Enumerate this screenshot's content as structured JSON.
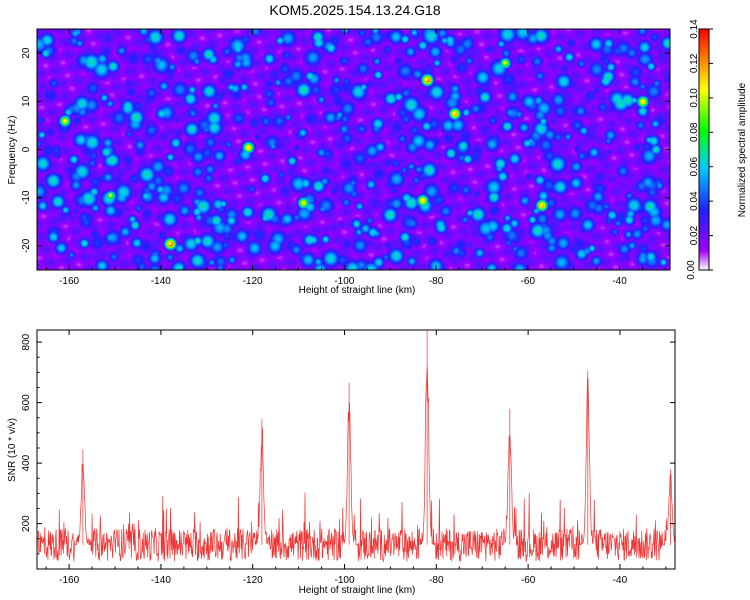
{
  "chart_data": [
    {
      "type": "heatmap",
      "title": "KOM5.2025.154.13.24.G18",
      "xlabel": "Height of straight line (km)",
      "ylabel": "Frequency (Hz)",
      "xlim": [
        -167,
        -29
      ],
      "ylim": [
        -25,
        25
      ],
      "xticks": [
        -160,
        -140,
        -120,
        -100,
        -80,
        -60,
        -40
      ],
      "yticks": [
        -20,
        -10,
        0,
        10,
        20
      ],
      "colorbar": {
        "label": "Normalized spectral amplitude",
        "range": [
          0,
          0.14
        ],
        "ticks": [
          0.0,
          0.02,
          0.04,
          0.06,
          0.08,
          0.1,
          0.12,
          0.14
        ],
        "tick_labels": [
          "0.00",
          "0.02",
          "0.04",
          "0.06",
          "0.08",
          "0.10",
          "0.12",
          "0.14"
        ],
        "colors": [
          "#ffffff",
          "#a000ff",
          "#2020ff",
          "#00c8ff",
          "#00ff00",
          "#ffff00",
          "#ff0000"
        ]
      },
      "hotspots": [
        {
          "x": -138,
          "y": -19.5,
          "v": 0.14
        },
        {
          "x": -82,
          "y": 14.5,
          "v": 0.14
        },
        {
          "x": -76,
          "y": 7.5,
          "v": 0.13
        },
        {
          "x": -151,
          "y": -9.5,
          "v": 0.09
        },
        {
          "x": -57,
          "y": -11.5,
          "v": 0.13
        },
        {
          "x": -121,
          "y": 0.5,
          "v": 0.12
        },
        {
          "x": -109,
          "y": -11,
          "v": 0.11
        },
        {
          "x": -65,
          "y": 18,
          "v": 0.1
        },
        {
          "x": -83,
          "y": -10.5,
          "v": 0.12
        },
        {
          "x": -35,
          "y": 10,
          "v": 0.12
        },
        {
          "x": -161,
          "y": 6,
          "v": 0.11
        }
      ]
    },
    {
      "type": "line",
      "xlabel": "Height of straight line (km)",
      "ylabel": "SNR (10 * v/v)",
      "xlim": [
        -167,
        -28
      ],
      "ylim": [
        50,
        840
      ],
      "xticks": [
        -160,
        -140,
        -120,
        -100,
        -80,
        -60,
        -40
      ],
      "yticks": [
        200,
        400,
        600,
        800
      ],
      "color": "#ee3333",
      "baseline": {
        "mean": 130,
        "spread": 55
      },
      "peaks": [
        {
          "x": -157,
          "y": 445
        },
        {
          "x": -118,
          "y": 545
        },
        {
          "x": -99,
          "y": 665
        },
        {
          "x": -82,
          "y": 840
        },
        {
          "x": -64,
          "y": 580
        },
        {
          "x": -47,
          "y": 705
        },
        {
          "x": -29,
          "y": 380
        }
      ]
    }
  ]
}
